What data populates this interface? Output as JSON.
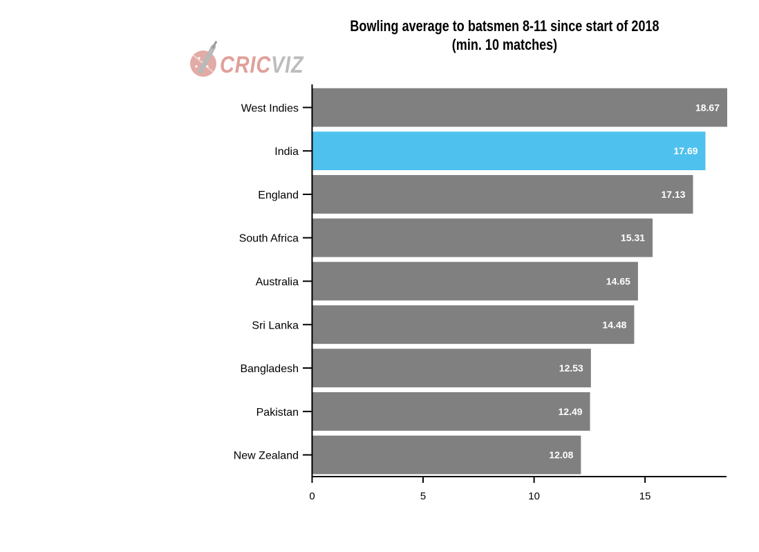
{
  "logo": {
    "text_cric": "CRIC",
    "text_viz": "VIZ"
  },
  "chart_data": {
    "type": "bar",
    "orientation": "horizontal",
    "title": "Bowling average to batsmen 8-11 since start of 2018 (min. 10 matches)",
    "categories": [
      "West Indies",
      "India",
      "England",
      "South Africa",
      "Australia",
      "Sri Lanka",
      "Bangladesh",
      "Pakistan",
      "New Zealand"
    ],
    "values": [
      18.67,
      17.69,
      17.13,
      15.31,
      14.65,
      14.48,
      12.53,
      12.49,
      12.08
    ],
    "value_labels": [
      "18.67",
      "17.69",
      "17.13",
      "15.31",
      "14.65",
      "14.48",
      "12.53",
      "12.49",
      "12.08"
    ],
    "highlight_category": "India",
    "colors": {
      "bar": "#808080",
      "highlight": "#4fc1ee",
      "logo_cric": "#e0a09a",
      "logo_viz": "#bdbdbd"
    },
    "xticks": [
      0,
      5,
      10,
      15
    ],
    "xtick_labels": [
      "0",
      "5",
      "10",
      "15"
    ],
    "xlim": [
      0,
      18.67
    ],
    "xlabel": "",
    "ylabel": "",
    "grid": false,
    "legend": "none"
  }
}
